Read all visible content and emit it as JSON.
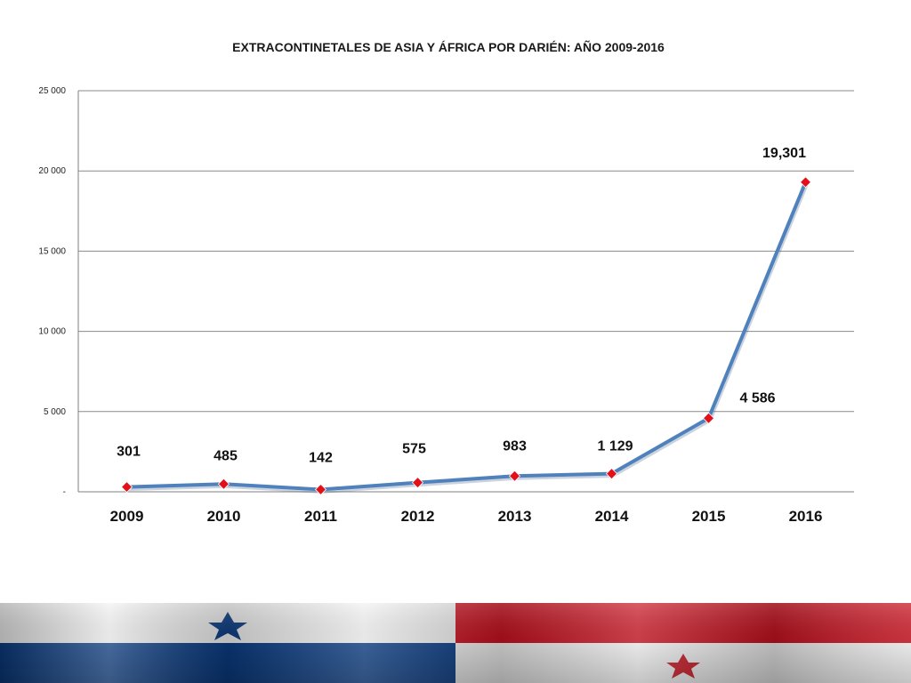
{
  "chart_data": {
    "type": "line",
    "title": "EXTRACONTINETALES DE ASIA Y ÁFRICA POR DARIÉN: AÑO 2009-2016",
    "xlabel": "",
    "ylabel": "",
    "categories": [
      "2009",
      "2010",
      "2011",
      "2012",
      "2013",
      "2014",
      "2015",
      "2016"
    ],
    "values": [
      301,
      485,
      142,
      575,
      983,
      1129,
      4586,
      19301
    ],
    "data_labels": [
      "301",
      "485",
      "142",
      "575",
      "983",
      "1 129",
      "4 586",
      "19,301"
    ],
    "ylim": [
      0,
      25000
    ],
    "yticks": [
      0,
      5000,
      10000,
      15000,
      20000,
      25000
    ],
    "ytick_labels": [
      "-",
      "5 000",
      "10 000",
      "15 000",
      "20 000",
      "25 000"
    ],
    "grid": true,
    "legend": "none",
    "line_color": "#4F81BD",
    "marker_color": "#E3101A",
    "marker_shape": "diamond"
  },
  "decoration": {
    "flag": "panama-flag",
    "colors": {
      "white": "#F2F2F2",
      "blue": "#0B3E86",
      "red": "#C8101E"
    }
  }
}
